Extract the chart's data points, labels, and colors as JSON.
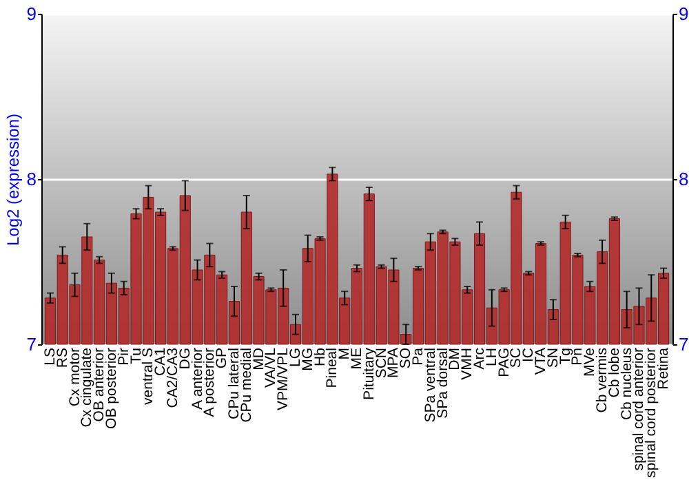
{
  "chart_data": {
    "type": "bar",
    "ylabel": "Log2 (expression)",
    "categories": [
      "LS",
      "RS",
      "Cx motor",
      "Cx cingulate",
      "OB anterior",
      "OB posterior",
      "Pir",
      "Tu",
      "ventral S",
      "CA1",
      "CA2/CA3",
      "DG",
      "A anterior",
      "A posterior",
      "GP",
      "CPu lateral",
      "CPu medial",
      "MD",
      "VA/VL",
      "VPM/VPL",
      "LG",
      "MG",
      "Hb",
      "Pineal",
      "M",
      "ME",
      "Pituitary",
      "SCN",
      "MPA",
      "SO",
      "Pa",
      "SPa ventral",
      "SPa dorsal",
      "DM",
      "VMH",
      "Arc",
      "LH",
      "PAG",
      "SC",
      "IC",
      "VTA",
      "SN",
      "Tg",
      "Pn",
      "MVe",
      "Cb vermis",
      "Cb lobe",
      "Cb nucleus",
      "spinal cord anterior",
      "spinal cord posterior",
      "Retina"
    ],
    "series": [
      {
        "color": "#b22a2a",
        "values": [
          7.28,
          7.54,
          7.36,
          7.65,
          7.51,
          7.37,
          7.34,
          7.79,
          7.89,
          7.8,
          7.58,
          7.9,
          7.45,
          7.54,
          7.42,
          7.26,
          7.8,
          7.41,
          7.33,
          7.34,
          7.12,
          7.58,
          7.64,
          8.03,
          7.28,
          7.46,
          7.91,
          7.47,
          7.45,
          7.06,
          7.46,
          7.62,
          7.68,
          7.62,
          7.33,
          7.67,
          7.22,
          7.33,
          7.92,
          7.43,
          7.61,
          7.21,
          7.74,
          7.54,
          7.35,
          7.56,
          7.76,
          7.21,
          7.23,
          7.28,
          7.43
        ],
        "errors": [
          0.03,
          0.05,
          0.07,
          0.08,
          0.02,
          0.06,
          0.04,
          0.03,
          0.07,
          0.02,
          0.01,
          0.09,
          0.06,
          0.07,
          0.02,
          0.09,
          0.1,
          0.02,
          0.01,
          0.11,
          0.06,
          0.08,
          0.01,
          0.04,
          0.04,
          0.02,
          0.04,
          0.01,
          0.07,
          0.06,
          0.01,
          0.05,
          0.01,
          0.02,
          0.02,
          0.07,
          0.11,
          0.01,
          0.04,
          0.01,
          0.01,
          0.06,
          0.04,
          0.01,
          0.03,
          0.07,
          0.01,
          0.11,
          0.11,
          0.14,
          0.03
        ]
      }
    ],
    "ylim": [
      7,
      9
    ],
    "yticks": [
      7,
      8,
      9
    ],
    "y2lim": [
      7,
      9
    ],
    "y2ticks": [
      7,
      8,
      9
    ],
    "grid": "y"
  }
}
